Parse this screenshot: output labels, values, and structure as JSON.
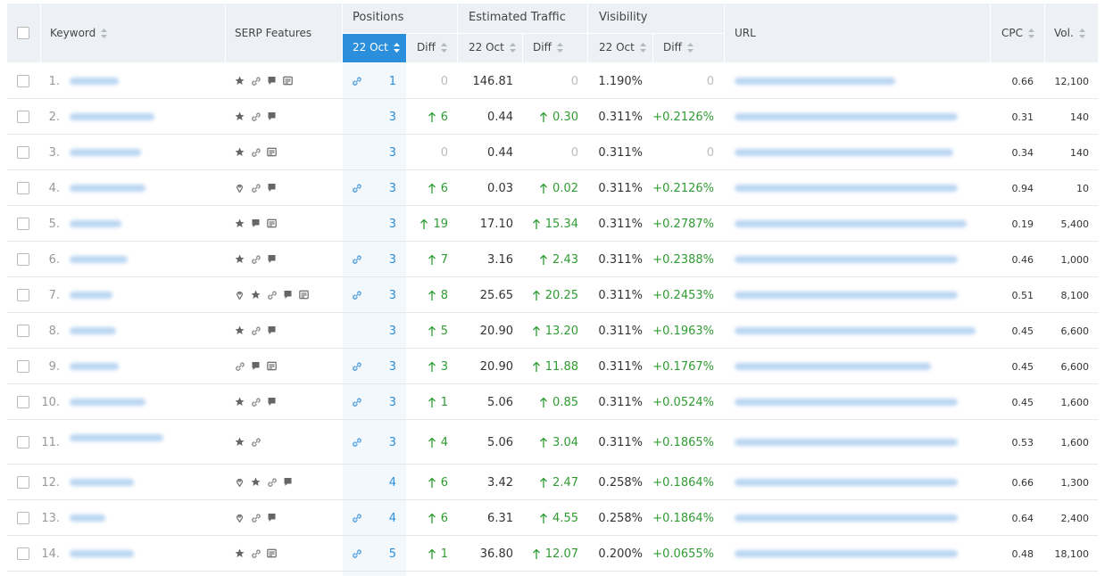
{
  "header": {
    "keyword": "Keyword",
    "serp_features": "SERP Features",
    "positions": "Positions",
    "estimated_traffic": "Estimated Traffic",
    "visibility": "Visibility",
    "positions_date": "22 Oct",
    "positions_diff": "Diff",
    "traffic_date": "22 Oct",
    "traffic_diff": "Diff",
    "visibility_date": "22 Oct",
    "visibility_diff": "Diff",
    "url": "URL",
    "cpc": "CPC",
    "volume": "Vol."
  },
  "rows": [
    {
      "number": "1.",
      "position": "1",
      "position_diff": "0",
      "traffic": "146.81",
      "traffic_diff": "0",
      "visibility": "1.190%",
      "visibility_diff": "0",
      "cpc": "0.66",
      "volume": "12,100"
    },
    {
      "number": "2.",
      "position": "3",
      "position_diff": "6",
      "traffic": "0.44",
      "traffic_diff": "0.30",
      "visibility": "0.311%",
      "visibility_diff": "+0.2126%",
      "cpc": "0.31",
      "volume": "140"
    },
    {
      "number": "3.",
      "position": "3",
      "position_diff": "0",
      "traffic": "0.44",
      "traffic_diff": "0",
      "visibility": "0.311%",
      "visibility_diff": "0",
      "cpc": "0.34",
      "volume": "140"
    },
    {
      "number": "4.",
      "position": "3",
      "position_diff": "6",
      "traffic": "0.03",
      "traffic_diff": "0.02",
      "visibility": "0.311%",
      "visibility_diff": "+0.2126%",
      "cpc": "0.94",
      "volume": "10"
    },
    {
      "number": "5.",
      "position": "3",
      "position_diff": "19",
      "traffic": "17.10",
      "traffic_diff": "15.34",
      "visibility": "0.311%",
      "visibility_diff": "+0.2787%",
      "cpc": "0.19",
      "volume": "5,400"
    },
    {
      "number": "6.",
      "position": "3",
      "position_diff": "7",
      "traffic": "3.16",
      "traffic_diff": "2.43",
      "visibility": "0.311%",
      "visibility_diff": "+0.2388%",
      "cpc": "0.46",
      "volume": "1,000"
    },
    {
      "number": "7.",
      "position": "3",
      "position_diff": "8",
      "traffic": "25.65",
      "traffic_diff": "20.25",
      "visibility": "0.311%",
      "visibility_diff": "+0.2453%",
      "cpc": "0.51",
      "volume": "8,100"
    },
    {
      "number": "8.",
      "position": "3",
      "position_diff": "5",
      "traffic": "20.90",
      "traffic_diff": "13.20",
      "visibility": "0.311%",
      "visibility_diff": "+0.1963%",
      "cpc": "0.45",
      "volume": "6,600"
    },
    {
      "number": "9.",
      "position": "3",
      "position_diff": "3",
      "traffic": "20.90",
      "traffic_diff": "11.88",
      "visibility": "0.311%",
      "visibility_diff": "+0.1767%",
      "cpc": "0.45",
      "volume": "6,600"
    },
    {
      "number": "10.",
      "position": "3",
      "position_diff": "1",
      "traffic": "5.06",
      "traffic_diff": "0.85",
      "visibility": "0.311%",
      "visibility_diff": "+0.0524%",
      "cpc": "0.45",
      "volume": "1,600"
    },
    {
      "number": "11.",
      "position": "3",
      "position_diff": "4",
      "traffic": "5.06",
      "traffic_diff": "3.04",
      "visibility": "0.311%",
      "visibility_diff": "+0.1865%",
      "cpc": "0.53",
      "volume": "1,600"
    },
    {
      "number": "12.",
      "position": "4",
      "position_diff": "6",
      "traffic": "3.42",
      "traffic_diff": "2.47",
      "visibility": "0.258%",
      "visibility_diff": "+0.1864%",
      "cpc": "0.66",
      "volume": "1,300"
    },
    {
      "number": "13.",
      "position": "4",
      "position_diff": "6",
      "traffic": "6.31",
      "traffic_diff": "4.55",
      "visibility": "0.258%",
      "visibility_diff": "+0.1864%",
      "cpc": "0.64",
      "volume": "2,400"
    },
    {
      "number": "14.",
      "position": "5",
      "position_diff": "1",
      "traffic": "36.80",
      "traffic_diff": "12.07",
      "visibility": "0.200%",
      "visibility_diff": "+0.0655%",
      "cpc": "0.48",
      "volume": "18,100"
    }
  ]
}
